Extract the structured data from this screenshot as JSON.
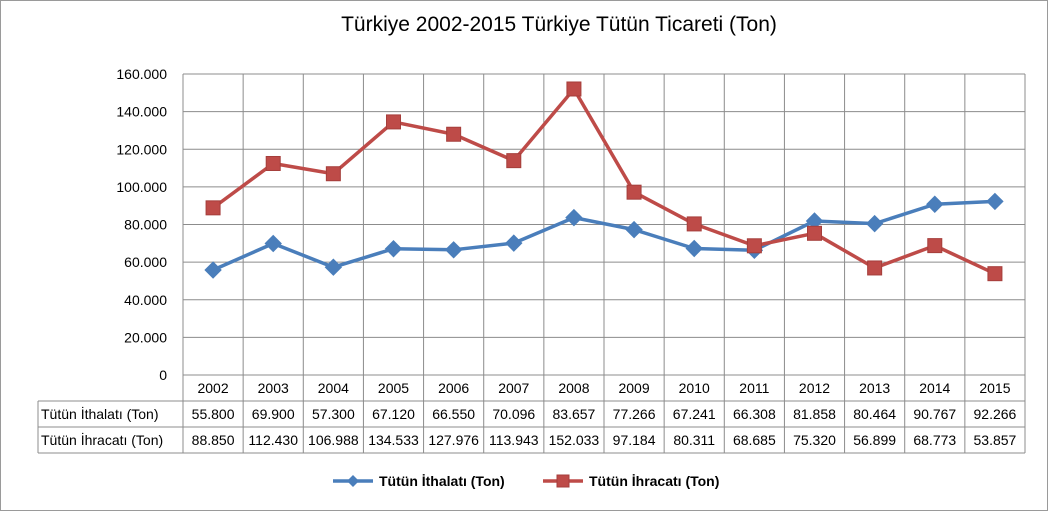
{
  "chart_data": {
    "type": "line",
    "title": "Türkiye 2002-2015 Türkiye Tütün Ticareti (Ton)",
    "categories": [
      "2002",
      "2003",
      "2004",
      "2005",
      "2006",
      "2007",
      "2008",
      "2009",
      "2010",
      "2011",
      "2012",
      "2013",
      "2014",
      "2015"
    ],
    "ylim": [
      0,
      160000
    ],
    "yticks": [
      0,
      20000,
      40000,
      60000,
      80000,
      100000,
      120000,
      140000,
      160000
    ],
    "ytick_labels": [
      "0",
      "20.000",
      "40.000",
      "60.000",
      "80.000",
      "100.000",
      "120.000",
      "140.000",
      "160.000"
    ],
    "grid": true,
    "legend_position": "bottom",
    "series": [
      {
        "name": "Tütün İthalatı (Ton)",
        "color": "#4a7ebb",
        "marker": "diamond",
        "values": [
          55800,
          69900,
          57300,
          67120,
          66550,
          70096,
          83657,
          77266,
          67241,
          66308,
          81858,
          80464,
          90767,
          92266
        ],
        "value_labels": [
          "55.800",
          "69.900",
          "57.300",
          "67.120",
          "66.550",
          "70.096",
          "83.657",
          "77.266",
          "67.241",
          "66.308",
          "81.858",
          "80.464",
          "90.767",
          "92.266"
        ]
      },
      {
        "name": "Tütün İhracatı (Ton)",
        "color": "#be4b48",
        "marker": "square",
        "values": [
          88850,
          112430,
          106988,
          134533,
          127976,
          113943,
          152033,
          97184,
          80311,
          68685,
          75320,
          56899,
          68773,
          53857
        ],
        "value_labels": [
          "88.850",
          "112.430",
          "106.988",
          "134.533",
          "127.976",
          "113.943",
          "152.033",
          "97.184",
          "80.311",
          "68.685",
          "75.320",
          "56.899",
          "68.773",
          "53.857"
        ]
      }
    ]
  }
}
